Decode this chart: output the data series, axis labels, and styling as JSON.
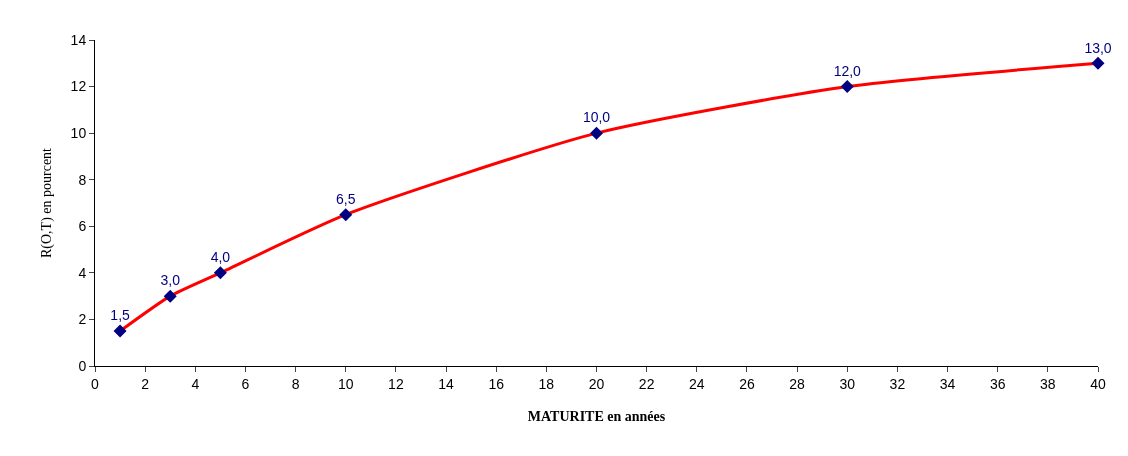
{
  "chart_data": {
    "type": "line",
    "xlabel": "MATURITE en années",
    "ylabel": "R(O,T) en pourcent",
    "x": [
      1,
      3,
      5,
      10,
      20,
      30,
      40
    ],
    "series": [
      {
        "color": "#ff0000",
        "colors": [
          "#000080",
          "#000080",
          "#000080",
          "#000080",
          "#000080",
          "#000080",
          "#000080"
        ],
        "values": [
          1.5,
          3.0,
          4.0,
          6.5,
          10.0,
          12.0,
          13.0
        ],
        "value_labels": [
          "1,5",
          "3,0",
          "4,0",
          "6,5",
          "10,0",
          "12,0",
          "13,0"
        ]
      }
    ],
    "xlim": [
      0,
      40
    ],
    "xticks": [
      0,
      2,
      4,
      6,
      8,
      10,
      12,
      14,
      16,
      18,
      20,
      22,
      24,
      26,
      28,
      30,
      32,
      34,
      36,
      38,
      40
    ],
    "ylim": [
      0,
      14
    ],
    "yticks": [
      0,
      2,
      4,
      6,
      8,
      10,
      12,
      14
    ],
    "marker": "diamond",
    "line_style": "solid"
  }
}
